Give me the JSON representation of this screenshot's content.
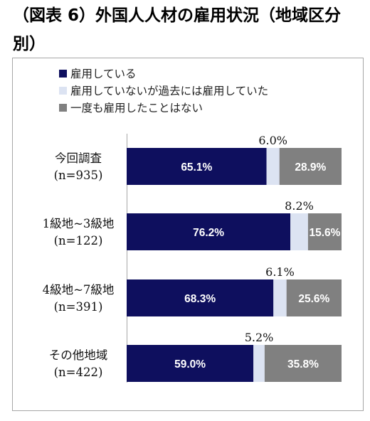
{
  "title": "（図表 6）外国人人材の雇用状況（地域区分別）",
  "colors": {
    "employing": "#0e0f5e",
    "past": "#dce3f2",
    "never": "#808080",
    "axis": "#a6a6a6"
  },
  "chart_data": {
    "type": "bar",
    "orientation": "horizontal",
    "stacked": true,
    "percent": true,
    "legend_position": "top-left",
    "grid": false,
    "categories": [
      "今回調査",
      "1級地~3級地",
      "4級地~7級地",
      "その他地域"
    ],
    "category_n": [
      "(n=935)",
      "(n=122)",
      "(n=391)",
      "(n=422)"
    ],
    "series": [
      {
        "name": "雇用している",
        "values": [
          65.1,
          76.2,
          68.3,
          59.0
        ],
        "labels": [
          "65.1%",
          "76.2%",
          "68.3%",
          "59.0%"
        ],
        "color": "#0e0f5e"
      },
      {
        "name": "雇用していないが過去には雇用していた",
        "values": [
          6.0,
          8.2,
          6.1,
          5.2
        ],
        "labels": [
          "6.0%",
          "8.2%",
          "6.1%",
          "5.2%"
        ],
        "color": "#dce3f2"
      },
      {
        "name": "一度も雇用したことはない",
        "values": [
          28.9,
          15.6,
          25.6,
          35.8
        ],
        "labels": [
          "28.9%",
          "15.6%",
          "25.6%",
          "35.8%"
        ],
        "color": "#808080"
      }
    ],
    "xlim": [
      0,
      100
    ]
  }
}
